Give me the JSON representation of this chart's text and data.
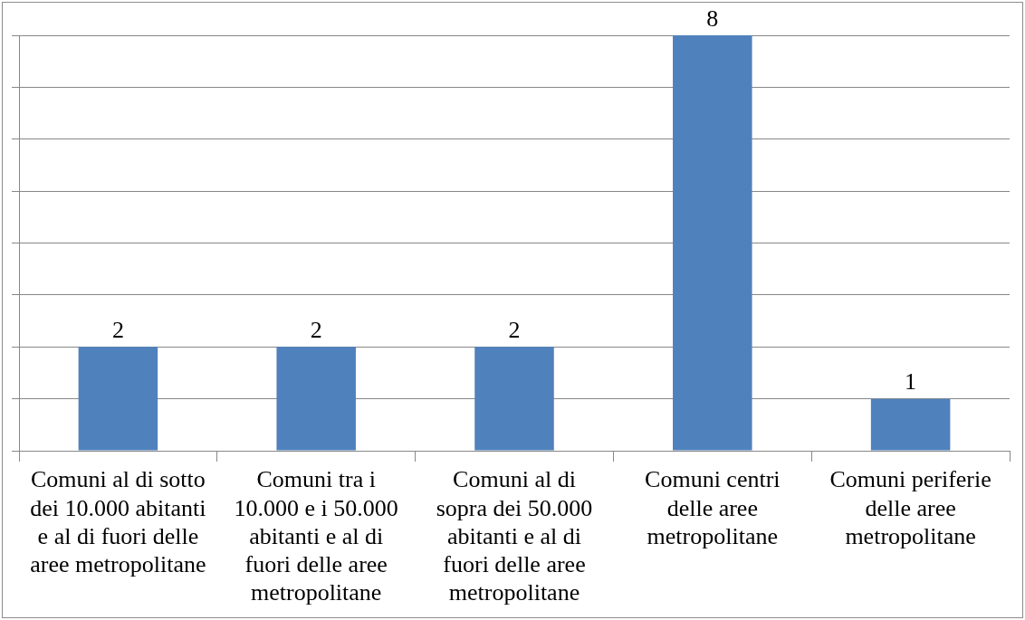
{
  "chart_data": {
    "type": "bar",
    "categories": [
      "Comuni al di sotto dei 10.000 abitanti e al di fuori delle aree metropolitane",
      "Comuni tra i 10.000 e i 50.000 abitanti e al di fuori delle aree metropolitane",
      "Comuni al di sopra dei 50.000 abitanti e al di fuori delle aree metropolitane",
      "Comuni centri delle aree metropolitane",
      "Comuni periferie delle aree metropolitane"
    ],
    "values": [
      2,
      2,
      2,
      8,
      1
    ],
    "color": "#4f81bd",
    "ylim": [
      0,
      8
    ],
    "yticks": [
      {
        "value": 0,
        "label": null
      },
      {
        "value": 1,
        "label": null
      },
      {
        "value": 2,
        "label": null
      },
      {
        "value": 3,
        "label": null
      },
      {
        "value": 4,
        "label": null
      },
      {
        "value": 5,
        "label": null
      },
      {
        "value": 6,
        "label": null
      },
      {
        "value": 7,
        "label": null
      },
      {
        "value": 8,
        "label": null
      }
    ],
    "grid": "y",
    "tick_labels": "x",
    "data_labels": true
  }
}
